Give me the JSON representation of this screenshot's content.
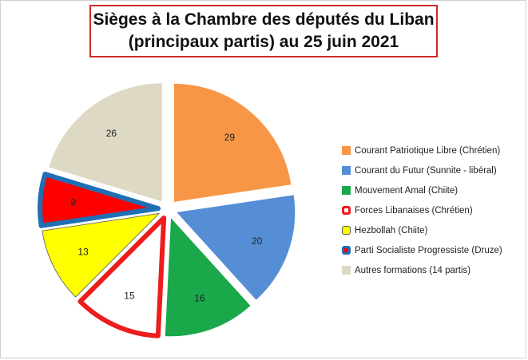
{
  "title": {
    "line1": "Sièges à la Chambre des députés du Liban",
    "line2": "(principaux partis) au 25 juin 2021"
  },
  "chart_data": {
    "type": "pie",
    "title": "Sièges à la Chambre des députés du Liban (principaux partis) au 25 juin 2021",
    "legend_position": "right",
    "slices": [
      {
        "label": "Courant Patriotique Libre (Chrétien)",
        "value": 29,
        "fill": "#F79646",
        "stroke": "none"
      },
      {
        "label": "Courant du Futur (Sunnite - libéral)",
        "value": 20,
        "fill": "#558ED5",
        "stroke": "none"
      },
      {
        "label": "Mouvement Amal (Chiite)",
        "value": 16,
        "fill": "#1BA84A",
        "stroke": "none"
      },
      {
        "label": "Forces Libanaises (Chrétien)",
        "value": 15,
        "fill": "#FFFFFF",
        "stroke": "#EE1C1C"
      },
      {
        "label": "Hezbollah (Chiite)",
        "value": 13,
        "fill": "#FFFF00",
        "stroke": "#555555"
      },
      {
        "label": "Parti Socialiste Progressiste (Druze)",
        "value": 9,
        "fill": "#FF0000",
        "stroke": "#1F6FB4"
      },
      {
        "label": "Autres formations (14 partis)",
        "value": 26,
        "fill": "#DDD9C4",
        "stroke": "none"
      }
    ]
  }
}
